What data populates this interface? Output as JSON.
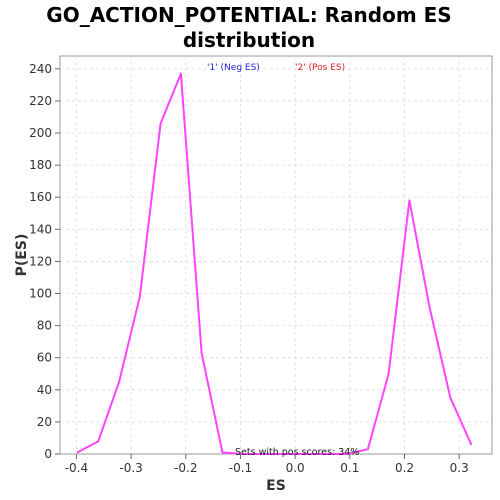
{
  "chart_data": {
    "type": "line",
    "title_lines": [
      "GO_ACTION_POTENTIAL: Random ES",
      "distribution"
    ],
    "xlabel": "ES",
    "ylabel": "P(ES)",
    "xlim": [
      -0.43,
      0.36
    ],
    "ylim": [
      0,
      248
    ],
    "xticks": [
      -0.4,
      -0.3,
      -0.2,
      -0.1,
      0.0,
      0.1,
      0.2,
      0.3
    ],
    "xtick_labels": [
      "-0.4",
      "-0.3",
      "-0.2",
      "-0.1",
      "0.0",
      "0.1",
      "0.2",
      "0.3"
    ],
    "yticks": [
      0,
      20,
      40,
      60,
      80,
      100,
      120,
      140,
      160,
      180,
      200,
      220,
      240
    ],
    "ytick_labels": [
      "0",
      "20",
      "40",
      "60",
      "80",
      "100",
      "120",
      "140",
      "160",
      "180",
      "200",
      "220",
      "240"
    ],
    "grid": true,
    "legend": [
      {
        "label": "'1' (Neg ES)",
        "color": "#2222dd"
      },
      {
        "label": "'2' (Pos ES)",
        "color": "#dd2222"
      }
    ],
    "annotation": "Sets with pos scores: 34%",
    "line_color": "#ff44ff",
    "series": [
      {
        "x": [
          -0.398,
          -0.36,
          -0.322,
          -0.284,
          -0.246,
          -0.209,
          -0.171,
          -0.133,
          -0.095,
          0.095,
          0.133,
          0.171,
          0.209,
          0.246,
          0.284,
          0.322
        ],
        "y": [
          1,
          8,
          45,
          98,
          206,
          237,
          63,
          1,
          0,
          0,
          3,
          50,
          158,
          91,
          35,
          6
        ]
      }
    ]
  }
}
